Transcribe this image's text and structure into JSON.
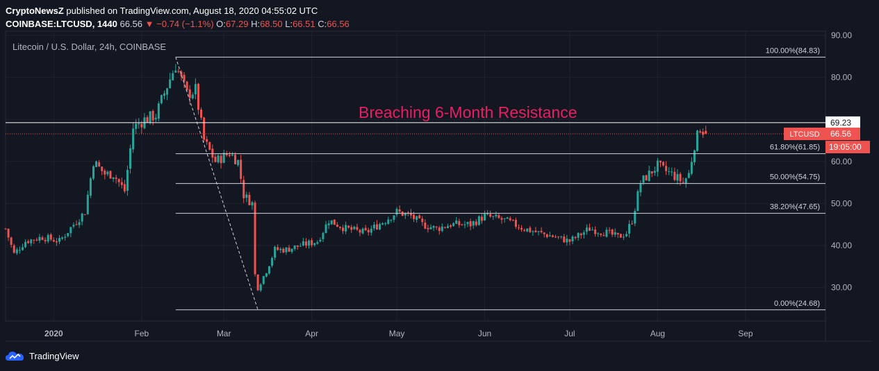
{
  "header": {
    "author": "CryptoNewsZ",
    "published_text": "published on TradingView.com, August 18, 2020 04:55:02 UTC",
    "symbol_interval": "COINBASE:LTCUSD, 1440",
    "last": "66.56",
    "change": "−0.74 (−1.1%)",
    "open_label": "O:",
    "open": "67.29",
    "high_label": "H:",
    "high": "68.50",
    "low_label": "L:",
    "low": "66.51",
    "close_label": "C:",
    "close": "66.56"
  },
  "branding": {
    "logo_icon": "tradingview-cloud-icon",
    "name": "TradingView"
  },
  "colors": {
    "background": "#131722",
    "up": "#26a69a",
    "down": "#ef5350",
    "grid": "#1f2330",
    "annotation": "#e91e63",
    "text": "#b2b5be"
  },
  "chart_data": {
    "type": "candlestick",
    "title": "Litecoin / U.S. Dollar, 24h, COINBASE",
    "ylim": [
      22,
      91
    ],
    "y_ticks": [
      30,
      40,
      50,
      60,
      70,
      80,
      90
    ],
    "y_tick_labels": [
      "30.00",
      "40.00",
      "50.00",
      "60.00",
      "",
      "80.00",
      "90.00"
    ],
    "x_ticks": [
      "2020",
      "Feb",
      "Mar",
      "Apr",
      "May",
      "Jun",
      "Jul",
      "Aug",
      "Sep"
    ],
    "grid": true,
    "annotation": "Breaching 6-Month Resistance",
    "fibonacci": {
      "levels": [
        {
          "label": "100.00%(84.83)",
          "value": 84.83
        },
        {
          "label": "61.80%(61.85)",
          "value": 61.85
        },
        {
          "label": "50.00%(54.75)",
          "value": 54.75
        },
        {
          "label": "38.20%(47.65)",
          "value": 47.65
        },
        {
          "label": "0.00%(24.68)",
          "value": 24.68
        }
      ],
      "from": {
        "date": "2020-02-13",
        "price": 84.83
      },
      "to": {
        "date": "2020-03-13",
        "price": 24.68
      }
    },
    "resistance": {
      "value": 69.23,
      "label": "69.23"
    },
    "last_price": {
      "value": 66.56,
      "symbol": "LTCUSD",
      "label": "66.56",
      "countdown": "19:05:00"
    },
    "path": [
      [
        "2019-12-15",
        44
      ],
      [
        "2019-12-18",
        38
      ],
      [
        "2019-12-22",
        41
      ],
      [
        "2019-12-28",
        42
      ],
      [
        "2020-01-03",
        41
      ],
      [
        "2020-01-08",
        45
      ],
      [
        "2020-01-12",
        48
      ],
      [
        "2020-01-15",
        60
      ],
      [
        "2020-01-19",
        57
      ],
      [
        "2020-01-22",
        57
      ],
      [
        "2020-01-26",
        53
      ],
      [
        "2020-01-29",
        68
      ],
      [
        "2020-02-02",
        70
      ],
      [
        "2020-02-06",
        71
      ],
      [
        "2020-02-10",
        78
      ],
      [
        "2020-02-13",
        83
      ],
      [
        "2020-02-17",
        76
      ],
      [
        "2020-02-20",
        77
      ],
      [
        "2020-02-23",
        65
      ],
      [
        "2020-02-27",
        60
      ],
      [
        "2020-03-03",
        62
      ],
      [
        "2020-03-06",
        60
      ],
      [
        "2020-03-08",
        52
      ],
      [
        "2020-03-11",
        50
      ],
      [
        "2020-03-12",
        33
      ],
      [
        "2020-03-13",
        30
      ],
      [
        "2020-03-16",
        34
      ],
      [
        "2020-03-19",
        39
      ],
      [
        "2020-03-23",
        39
      ],
      [
        "2020-03-28",
        40
      ],
      [
        "2020-04-03",
        41
      ],
      [
        "2020-04-07",
        46
      ],
      [
        "2020-04-13",
        44
      ],
      [
        "2020-04-20",
        43
      ],
      [
        "2020-04-27",
        46
      ],
      [
        "2020-05-01",
        48
      ],
      [
        "2020-05-06",
        47
      ],
      [
        "2020-05-10",
        45
      ],
      [
        "2020-05-15",
        44
      ],
      [
        "2020-05-20",
        45
      ],
      [
        "2020-05-27",
        45
      ],
      [
        "2020-06-01",
        47
      ],
      [
        "2020-06-08",
        46
      ],
      [
        "2020-06-15",
        44
      ],
      [
        "2020-06-20",
        43
      ],
      [
        "2020-06-26",
        42
      ],
      [
        "2020-07-01",
        41
      ],
      [
        "2020-07-08",
        44
      ],
      [
        "2020-07-14",
        43
      ],
      [
        "2020-07-18",
        42
      ],
      [
        "2020-07-21",
        43
      ],
      [
        "2020-07-23",
        46
      ],
      [
        "2020-07-26",
        55
      ],
      [
        "2020-07-29",
        57
      ],
      [
        "2020-08-01",
        59
      ],
      [
        "2020-08-03",
        58
      ],
      [
        "2020-08-06",
        57
      ],
      [
        "2020-08-10",
        55
      ],
      [
        "2020-08-12",
        57
      ],
      [
        "2020-08-14",
        64
      ],
      [
        "2020-08-16",
        68
      ],
      [
        "2020-08-17",
        67.29
      ]
    ],
    "last_candle": {
      "date": "2020-08-18",
      "open": 67.29,
      "high": 68.5,
      "low": 66.51,
      "close": 66.56
    }
  }
}
